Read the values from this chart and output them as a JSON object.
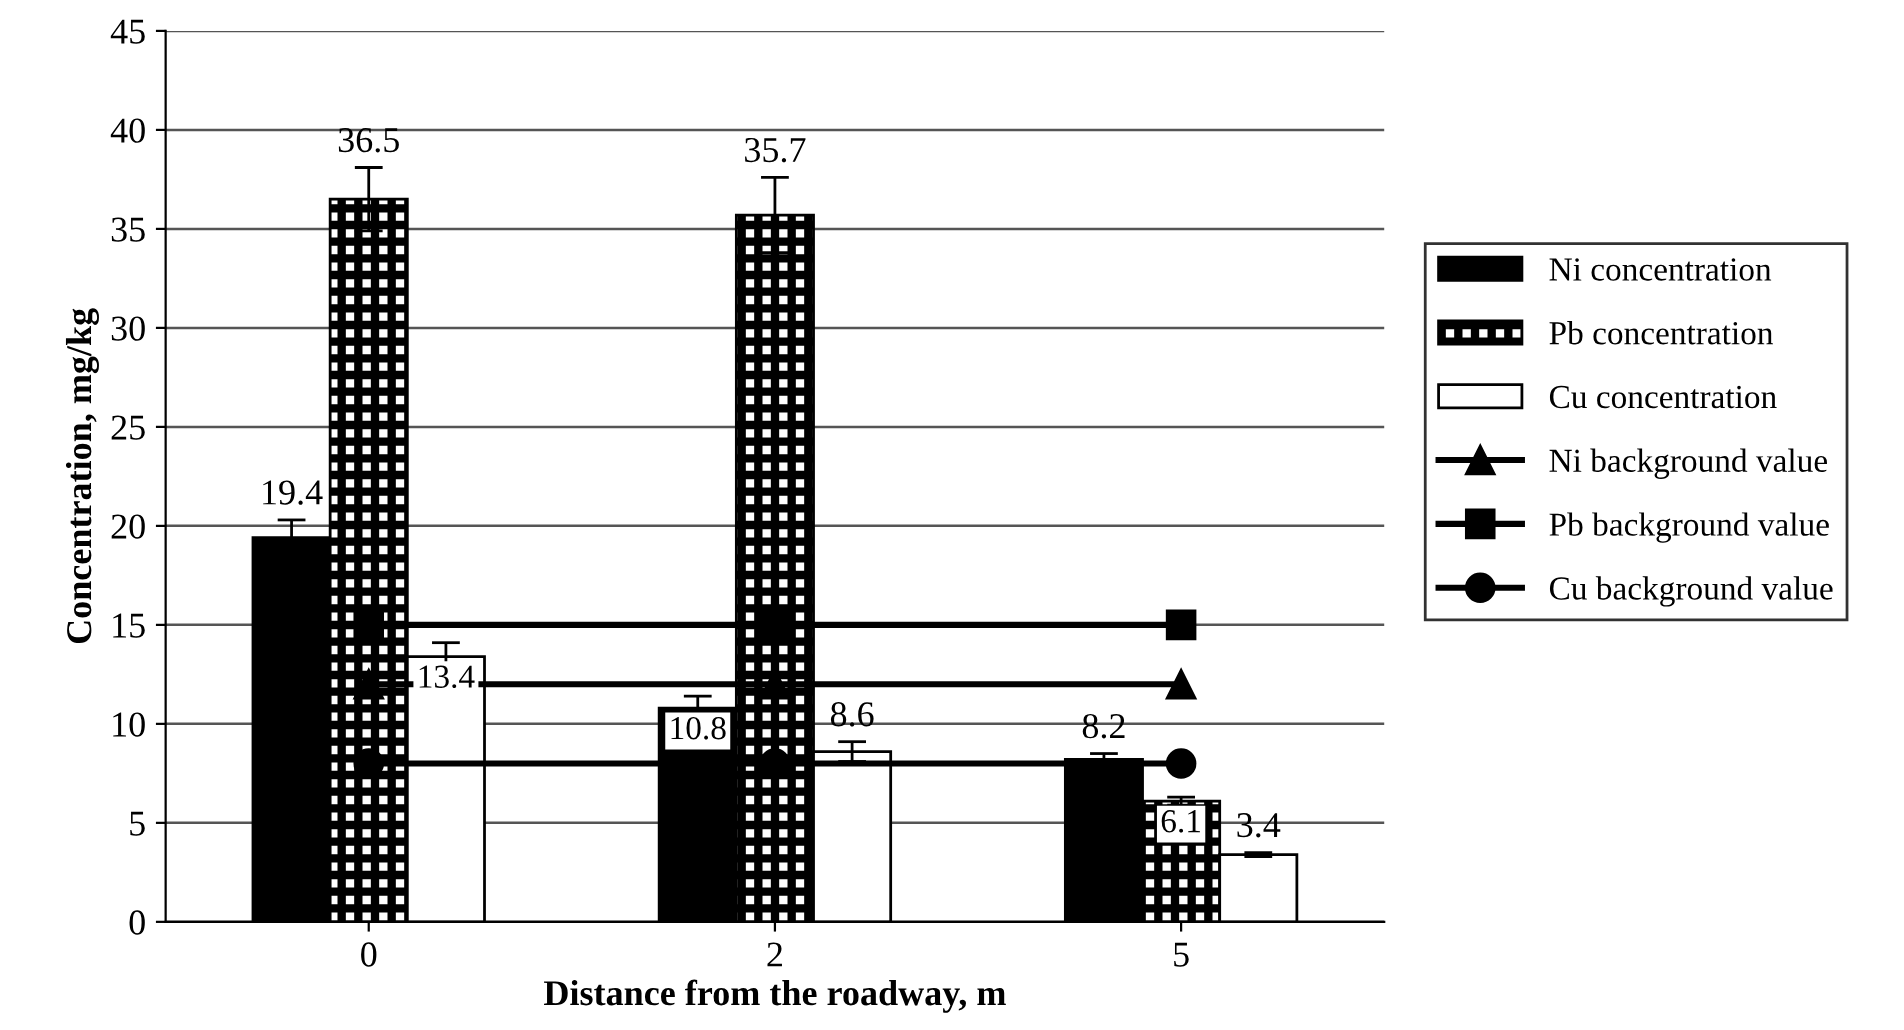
{
  "chart_data": {
    "type": "bar",
    "xlabel": "Distance from the roadway, m",
    "ylabel": "Concentration, mg/kg",
    "categories": [
      "0",
      "2",
      "5"
    ],
    "series": [
      {
        "name": "Ni concentration",
        "color": "#000000",
        "values": [
          19.4,
          10.8,
          8.2
        ],
        "errors": [
          0.9,
          0.6,
          0.3
        ],
        "value_labels": [
          "19.4",
          "10.8",
          "8.2"
        ]
      },
      {
        "name": "Pb concentration",
        "color": "#000000",
        "values": [
          36.5,
          35.7,
          6.1
        ],
        "errors": [
          1.6,
          1.9,
          0.2
        ],
        "value_labels": [
          "36.5",
          "35.7",
          "6.1"
        ]
      },
      {
        "name": "Cu concentration",
        "color": "#ffffff",
        "values": [
          13.4,
          8.6,
          3.4
        ],
        "errors": [
          0.7,
          0.5,
          0.1
        ],
        "value_labels": [
          "13.4",
          "8.6",
          "3.4"
        ]
      },
      {
        "name": "Ni background value",
        "type": "line",
        "color": "#000000",
        "marker": "triangle",
        "values": [
          12,
          12,
          12
        ]
      },
      {
        "name": "Pb background value",
        "type": "line",
        "color": "#000000",
        "marker": "square",
        "values": [
          15,
          15,
          15
        ]
      },
      {
        "name": "Cu background value",
        "type": "line",
        "color": "#000000",
        "marker": "circle",
        "values": [
          8,
          8,
          8
        ]
      }
    ],
    "ylim": [
      0,
      45
    ],
    "yticks": [
      0,
      5,
      10,
      15,
      20,
      25,
      30,
      35,
      40,
      45
    ],
    "grid": "y",
    "legend": "right"
  }
}
